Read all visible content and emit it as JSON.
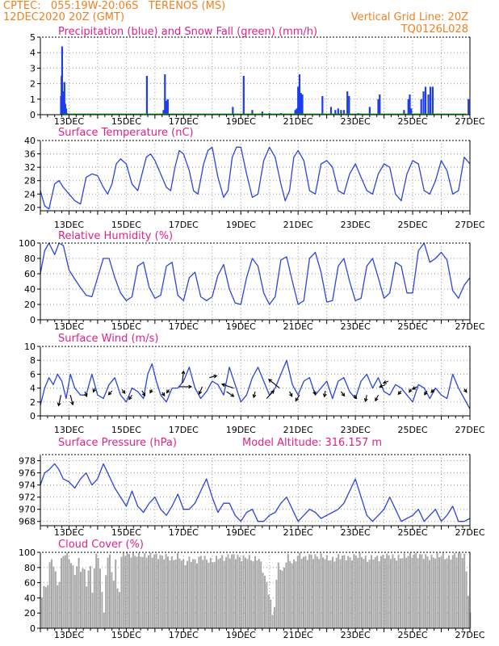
{
  "header": {
    "line1": "CPTEC:   055:19W-20:06S   TERENOS (MS)",
    "line2": "12DEC2020 20Z (GMT)",
    "right1": "Vertical Grid Line: 20Z",
    "right2": "TQ0126L028",
    "orange": "#f08020",
    "magenta": "#e0208a"
  },
  "x_days": [
    "13DEC",
    "15DEC",
    "17DEC",
    "19DEC",
    "21DEC",
    "23DEC",
    "25DEC",
    "27DEC"
  ],
  "chart_data": [
    {
      "type": "bar",
      "title": "Precipitation (blue) and Snow Fall (green) (mm/h)",
      "ylim": [
        0,
        5
      ],
      "yticks": [
        0,
        1,
        2,
        3,
        4,
        5
      ],
      "colors": {
        "precip": "#1c3cf0",
        "snow": "#10b010"
      },
      "series": [
        {
          "name": "precipitation",
          "points": [
            [
              12.72,
              1.2
            ],
            [
              12.74,
              2.5
            ],
            [
              12.76,
              4.4
            ],
            [
              12.79,
              1.5
            ],
            [
              12.81,
              0.8
            ],
            [
              12.84,
              2.1
            ],
            [
              12.87,
              0.7
            ],
            [
              12.9,
              0.4
            ],
            [
              12.93,
              0.1
            ],
            [
              15.72,
              2.5
            ],
            [
              16.3,
              0.3
            ],
            [
              16.35,
              2.6
            ],
            [
              16.4,
              0.9
            ],
            [
              16.45,
              1.0
            ],
            [
              18.72,
              0.5
            ],
            [
              19.1,
              2.5
            ],
            [
              19.4,
              0.3
            ],
            [
              19.75,
              0.2
            ],
            [
              20.0,
              0.1
            ],
            [
              20.4,
              0.1
            ],
            [
              20.9,
              0.3
            ],
            [
              20.95,
              0.4
            ],
            [
              21.0,
              1.8
            ],
            [
              21.05,
              2.6
            ],
            [
              21.1,
              1.4
            ],
            [
              21.15,
              1.3
            ],
            [
              21.85,
              1.2
            ],
            [
              22.15,
              0.5
            ],
            [
              22.3,
              0.3
            ],
            [
              22.4,
              0.4
            ],
            [
              22.5,
              0.3
            ],
            [
              22.6,
              0.3
            ],
            [
              22.72,
              1.5
            ],
            [
              22.78,
              1.2
            ],
            [
              23.1,
              0.1
            ],
            [
              23.5,
              0.5
            ],
            [
              23.8,
              1.0
            ],
            [
              23.85,
              1.3
            ],
            [
              24.7,
              0.3
            ],
            [
              24.85,
              1.0
            ],
            [
              24.9,
              1.3
            ],
            [
              24.95,
              0.4
            ],
            [
              25.3,
              1.0
            ],
            [
              25.38,
              1.5
            ],
            [
              25.45,
              1.8
            ],
            [
              25.55,
              1.3
            ],
            [
              25.62,
              1.8
            ],
            [
              25.7,
              1.8
            ],
            [
              26.95,
              1.0
            ]
          ]
        },
        {
          "name": "snow",
          "points": []
        }
      ]
    },
    {
      "type": "line",
      "title": "Surface Temperature (nC)",
      "ylim": [
        19,
        40
      ],
      "yticks": [
        20,
        24,
        28,
        32,
        36,
        40
      ],
      "color": "#2a45dc",
      "x": [
        12.0,
        12.15,
        12.3,
        12.5,
        12.65,
        12.8,
        13.0,
        13.2,
        13.4,
        13.6,
        13.8,
        14.0,
        14.2,
        14.35,
        14.5,
        14.65,
        14.8,
        15.0,
        15.2,
        15.4,
        15.55,
        15.7,
        15.85,
        16.0,
        16.2,
        16.4,
        16.55,
        16.7,
        16.85,
        17.0,
        17.2,
        17.35,
        17.5,
        17.7,
        17.85,
        18.0,
        18.2,
        18.4,
        18.55,
        18.7,
        18.85,
        19.0,
        19.2,
        19.4,
        19.6,
        19.8,
        20.0,
        20.2,
        20.4,
        20.55,
        20.7,
        20.85,
        21.0,
        21.2,
        21.4,
        21.6,
        21.8,
        22.0,
        22.2,
        22.4,
        22.6,
        22.8,
        23.0,
        23.2,
        23.4,
        23.6,
        23.8,
        24.0,
        24.2,
        24.4,
        24.6,
        24.8,
        25.0,
        25.2,
        25.4,
        25.6,
        25.8,
        26.0,
        26.2,
        26.4,
        26.6,
        26.8,
        27.0
      ],
      "values": [
        25,
        20.5,
        19.5,
        27,
        28,
        26,
        24,
        22,
        21,
        29,
        30,
        29.5,
        26,
        24,
        27,
        33,
        34.5,
        33,
        27,
        25,
        30,
        35,
        36,
        34,
        30,
        26,
        25,
        32,
        37,
        36,
        31,
        25,
        24,
        33,
        37,
        38,
        29,
        23,
        25,
        35,
        38,
        38,
        30,
        23,
        24,
        34,
        38,
        35,
        27,
        22,
        25,
        35,
        37,
        34,
        25,
        24,
        33,
        34,
        32,
        25,
        24,
        30,
        33,
        29,
        25,
        24,
        30,
        33,
        32,
        24,
        22,
        30,
        34,
        33,
        25,
        24,
        28,
        34,
        31,
        24,
        25,
        35,
        33
      ]
    },
    {
      "type": "line",
      "title": "Relative Humidity (%)",
      "ylim": [
        0,
        100
      ],
      "yticks": [
        0,
        20,
        40,
        60,
        80,
        100
      ],
      "color": "#2a45dc",
      "x": [
        12.0,
        12.15,
        12.3,
        12.5,
        12.65,
        12.8,
        13.0,
        13.2,
        13.4,
        13.6,
        13.8,
        14.0,
        14.2,
        14.4,
        14.6,
        14.8,
        15.0,
        15.2,
        15.4,
        15.6,
        15.8,
        16.0,
        16.2,
        16.4,
        16.6,
        16.8,
        17.0,
        17.2,
        17.4,
        17.6,
        17.8,
        18.0,
        18.2,
        18.4,
        18.6,
        18.8,
        19.0,
        19.2,
        19.4,
        19.6,
        19.8,
        20.0,
        20.2,
        20.4,
        20.6,
        20.8,
        21.0,
        21.2,
        21.4,
        21.6,
        21.8,
        22.0,
        22.2,
        22.4,
        22.6,
        22.8,
        23.0,
        23.2,
        23.4,
        23.6,
        23.8,
        24.0,
        24.2,
        24.4,
        24.6,
        24.8,
        25.0,
        25.2,
        25.4,
        25.6,
        25.8,
        26.0,
        26.2,
        26.4,
        26.6,
        26.8,
        27.0
      ],
      "values": [
        60,
        90,
        100,
        85,
        100,
        97,
        65,
        53,
        42,
        32,
        30,
        55,
        80,
        80,
        55,
        35,
        25,
        30,
        70,
        75,
        42,
        28,
        32,
        70,
        75,
        32,
        25,
        55,
        62,
        30,
        25,
        30,
        58,
        72,
        40,
        22,
        20,
        55,
        80,
        70,
        35,
        20,
        30,
        78,
        82,
        50,
        20,
        25,
        80,
        88,
        62,
        23,
        25,
        70,
        80,
        50,
        25,
        28,
        70,
        80,
        55,
        28,
        35,
        75,
        70,
        35,
        35,
        90,
        100,
        75,
        80,
        88,
        78,
        38,
        28,
        45,
        55
      ]
    },
    {
      "type": "line",
      "title": "Surface Wind (m/s)",
      "ylim": [
        0,
        10
      ],
      "yticks": [
        0,
        2,
        4,
        6,
        8,
        10
      ],
      "color": "#2a45dc",
      "x": [
        12.0,
        12.15,
        12.3,
        12.45,
        12.6,
        12.75,
        12.9,
        13.05,
        13.2,
        13.4,
        13.6,
        13.8,
        14.0,
        14.2,
        14.4,
        14.6,
        14.8,
        15.0,
        15.2,
        15.4,
        15.6,
        15.75,
        15.9,
        16.05,
        16.2,
        16.4,
        16.6,
        16.8,
        17.0,
        17.2,
        17.4,
        17.6,
        17.8,
        18.0,
        18.2,
        18.4,
        18.6,
        18.8,
        19.0,
        19.2,
        19.4,
        19.6,
        19.8,
        20.0,
        20.2,
        20.4,
        20.6,
        20.8,
        21.0,
        21.2,
        21.4,
        21.6,
        21.8,
        22.0,
        22.2,
        22.4,
        22.6,
        22.8,
        23.0,
        23.2,
        23.4,
        23.6,
        23.8,
        24.0,
        24.2,
        24.4,
        24.6,
        24.8,
        25.0,
        25.2,
        25.4,
        25.6,
        25.8,
        26.0,
        26.2,
        26.4,
        26.6,
        26.8,
        27.0
      ],
      "values": [
        1.5,
        4,
        5.5,
        4.5,
        6,
        5,
        2.5,
        6,
        4,
        3,
        3,
        6,
        3,
        2.5,
        4.5,
        5.5,
        3,
        2,
        4,
        3.5,
        2.5,
        6,
        7.5,
        5,
        3,
        2,
        4,
        4,
        5,
        7,
        4,
        2.5,
        3.5,
        5,
        4.5,
        3,
        7,
        4.5,
        2,
        3,
        5.5,
        7,
        5,
        3,
        4,
        6,
        8,
        4.5,
        3,
        5,
        5.5,
        3,
        4,
        5,
        2.5,
        5,
        5.5,
        3.5,
        2.5,
        5,
        6,
        4,
        5.5,
        3.5,
        3,
        4.5,
        4,
        3,
        2,
        4.5,
        4,
        2.5,
        4,
        3,
        2.5,
        6,
        4,
        2.5,
        1
      ]
    },
    {
      "type": "line",
      "title": "Surface Pressure (hPa)",
      "annotation": "Model Altitude: 316.157 m",
      "ylim": [
        967.3,
        979
      ],
      "yticks": [
        968,
        970,
        972,
        974,
        976,
        978
      ],
      "color": "#2a45dc",
      "x": [
        12.0,
        12.15,
        12.3,
        12.5,
        12.65,
        12.8,
        13.0,
        13.2,
        13.4,
        13.6,
        13.8,
        14.0,
        14.2,
        14.4,
        14.6,
        14.8,
        15.0,
        15.2,
        15.4,
        15.6,
        15.8,
        16.0,
        16.2,
        16.4,
        16.6,
        16.8,
        17.0,
        17.2,
        17.4,
        17.6,
        17.8,
        18.0,
        18.2,
        18.4,
        18.6,
        18.8,
        19.0,
        19.2,
        19.4,
        19.6,
        19.8,
        20.0,
        20.2,
        20.4,
        20.6,
        20.8,
        21.0,
        21.2,
        21.4,
        21.6,
        21.8,
        22.0,
        22.2,
        22.4,
        22.6,
        22.8,
        23.0,
        23.2,
        23.4,
        23.6,
        23.8,
        24.0,
        24.2,
        24.4,
        24.6,
        24.8,
        25.0,
        25.2,
        25.4,
        25.6,
        25.8,
        26.0,
        26.2,
        26.4,
        26.6,
        26.8,
        27.0
      ],
      "values": [
        974,
        976,
        976.5,
        977.5,
        976.5,
        975,
        974.5,
        973.5,
        975,
        976,
        974,
        975,
        977.5,
        975.5,
        973.5,
        972,
        970.5,
        973,
        970.5,
        969.5,
        971,
        972,
        970,
        969,
        970.5,
        972.5,
        970,
        970,
        971,
        973,
        975,
        972,
        969.5,
        971,
        971,
        969,
        968,
        969.5,
        970,
        968,
        968,
        969,
        969.5,
        971,
        972,
        970,
        968,
        969,
        970,
        969.5,
        968.5,
        969,
        969.5,
        970,
        971,
        973,
        975,
        972,
        969,
        968,
        969,
        970,
        972,
        970,
        968,
        968.5,
        969,
        970,
        968,
        969,
        970,
        968,
        969,
        970.5,
        968,
        968,
        968.5
      ]
    },
    {
      "type": "area",
      "title": "Cloud Cover (%)",
      "ylim": [
        0,
        100
      ],
      "yticks": [
        0,
        20,
        40,
        60,
        80,
        100
      ],
      "color": "#a8a8a8",
      "x": [
        12.0,
        12.1,
        12.2,
        12.3,
        12.4,
        12.5,
        12.6,
        12.7,
        12.8,
        12.9,
        13.0,
        13.1,
        13.2,
        13.3,
        13.4,
        13.5,
        13.6,
        13.7,
        13.8,
        13.9,
        14.0,
        14.1,
        14.2,
        14.3,
        14.4,
        14.5,
        14.6,
        14.7,
        14.8,
        14.9,
        15.0,
        15.2,
        15.4,
        15.6,
        15.8,
        16.0,
        16.2,
        16.4,
        16.6,
        16.8,
        17.0,
        17.2,
        17.4,
        17.6,
        17.8,
        18.0,
        18.2,
        18.4,
        18.6,
        18.8,
        19.0,
        19.2,
        19.4,
        19.6,
        19.8,
        20.0,
        20.1,
        20.2,
        20.3,
        20.4,
        20.6,
        20.8,
        21.0,
        21.2,
        21.4,
        21.6,
        21.8,
        22.0,
        22.2,
        22.4,
        22.6,
        22.8,
        23.0,
        23.2,
        23.4,
        23.6,
        23.8,
        24.0,
        24.2,
        24.4,
        24.6,
        24.8,
        25.0,
        25.2,
        25.4,
        25.6,
        25.8,
        26.0,
        26.2,
        26.4,
        26.6,
        26.8,
        27.0
      ],
      "values": [
        40,
        55,
        50,
        85,
        92,
        72,
        50,
        88,
        100,
        96,
        92,
        80,
        72,
        92,
        75,
        80,
        55,
        90,
        45,
        100,
        95,
        60,
        20,
        95,
        98,
        55,
        90,
        30,
        92,
        100,
        98,
        96,
        97,
        95,
        97,
        96,
        94,
        95,
        90,
        96,
        85,
        92,
        88,
        95,
        90,
        88,
        94,
        92,
        96,
        95,
        92,
        94,
        90,
        93,
        70,
        40,
        10,
        55,
        92,
        70,
        95,
        85,
        98,
        92,
        96,
        94,
        95,
        92,
        90,
        95,
        94,
        92,
        96,
        95,
        90,
        94,
        92,
        96,
        95,
        92,
        94,
        96,
        97,
        96,
        95,
        93,
        95,
        96,
        92,
        96,
        98,
        95,
        10
      ]
    },
    {
      "type": "vector",
      "title": "Surface Wind (m/s) direction arrows",
      "color": "#000000",
      "arrows": [
        [
          12.72,
          3.0,
          -0.5,
          2.2
        ],
        [
          13.05,
          3.0,
          0.5,
          2.0
        ],
        [
          13.55,
          3.5,
          0.4,
          1.0
        ],
        [
          13.9,
          4.0,
          -0.3,
          0.8
        ],
        [
          14.5,
          3.6,
          -0.7,
          0.8
        ],
        [
          14.85,
          3.8,
          0.6,
          0.8
        ],
        [
          15.2,
          3.0,
          -0.6,
          0.9
        ],
        [
          15.55,
          3.6,
          0.6,
          1.0
        ],
        [
          15.9,
          3.8,
          -0.4,
          0.7
        ],
        [
          16.25,
          3.4,
          0.5,
          0.7
        ],
        [
          16.5,
          3.8,
          -0.5,
          0.7
        ],
        [
          16.85,
          4.2,
          2.5,
          0.0
        ],
        [
          16.95,
          4.7,
          0.3,
          -2.5
        ],
        [
          17.65,
          4.2,
          -0.6,
          1.5
        ],
        [
          17.9,
          5.5,
          1.5,
          -0.4
        ],
        [
          18.5,
          3.5,
          1.5,
          1.0
        ],
        [
          18.75,
          4.0,
          -2.4,
          -0.8
        ],
        [
          19.5,
          3.5,
          -0.3,
          1.2
        ],
        [
          19.9,
          2.5,
          1.5,
          -1.6
        ],
        [
          20.35,
          4.0,
          -2.2,
          -1.8
        ],
        [
          20.7,
          3.5,
          0.5,
          1.0
        ],
        [
          21.05,
          3.0,
          -0.8,
          1.2
        ],
        [
          21.55,
          3.7,
          0.3,
          0.9
        ],
        [
          21.95,
          3.6,
          -0.2,
          1.2
        ],
        [
          22.5,
          3.5,
          0.7,
          0.9
        ],
        [
          22.95,
          3.0,
          0.5,
          0.7
        ],
        [
          23.4,
          3.0,
          -0.3,
          1.3
        ],
        [
          23.8,
          3.0,
          -0.6,
          1.2
        ],
        [
          24.05,
          4.5,
          -1.2,
          0.5
        ],
        [
          24.15,
          5.0,
          -1.0,
          0.4
        ],
        [
          24.6,
          3.6,
          -0.6,
          0.7
        ],
        [
          24.95,
          3.9,
          -0.4,
          0.7
        ],
        [
          25.15,
          4.2,
          -0.9,
          0.5
        ],
        [
          25.5,
          3.6,
          -0.5,
          0.8
        ],
        [
          25.75,
          3.8,
          -0.6,
          0.6
        ],
        [
          26.8,
          3.9,
          0.5,
          0.7
        ]
      ]
    }
  ]
}
